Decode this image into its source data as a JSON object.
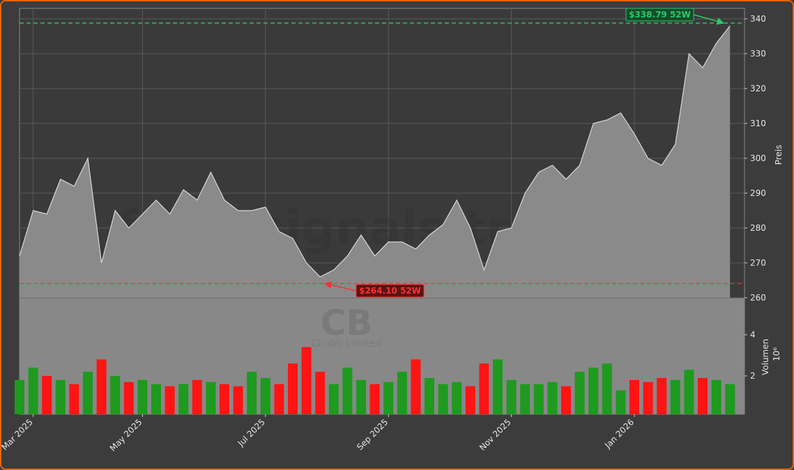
{
  "chart_data": [
    {
      "type": "area",
      "title": null,
      "categories": [
        null,
        "Mar 2025",
        null,
        null,
        null,
        null,
        null,
        null,
        null,
        "May 2025",
        null,
        null,
        null,
        null,
        null,
        null,
        null,
        null,
        "Jul 2025",
        null,
        null,
        null,
        null,
        null,
        null,
        null,
        null,
        "Sep 2025",
        null,
        null,
        null,
        null,
        null,
        null,
        null,
        null,
        "Nov 2025",
        null,
        null,
        null,
        null,
        null,
        null,
        null,
        null,
        "Jan 2026",
        null,
        null,
        null,
        null,
        null,
        null,
        null
      ],
      "values": [
        272,
        285,
        284,
        294,
        292,
        300,
        270,
        285,
        280,
        284,
        288,
        284,
        291,
        288,
        296,
        288,
        285,
        285,
        286,
        279,
        277,
        270,
        266,
        268,
        272,
        278,
        272,
        276,
        276,
        274,
        278,
        281,
        288,
        280,
        268,
        279,
        280,
        290,
        296,
        298,
        294,
        298,
        310,
        311,
        313,
        307,
        300,
        298,
        304,
        330,
        326,
        333,
        338
      ],
      "ylim": [
        260,
        343
      ],
      "yticks": [
        260,
        270,
        280,
        290,
        300,
        310,
        320,
        330,
        340
      ],
      "ylabel": "Preis",
      "grid": true,
      "hlines": [
        {
          "value": 338.79,
          "label": "$338.79 52W",
          "color": "#2ec866"
        },
        {
          "value": 264.1,
          "label": "$264.10 52W",
          "color": "#ff3030"
        }
      ],
      "watermark": "forexsignals.trade"
    },
    {
      "type": "bar",
      "values": [
        1.8,
        2.4,
        2.0,
        1.8,
        1.6,
        2.2,
        2.8,
        2.0,
        1.7,
        1.8,
        1.6,
        1.5,
        1.6,
        1.8,
        1.7,
        1.6,
        1.5,
        2.2,
        1.9,
        1.6,
        2.6,
        3.4,
        2.2,
        1.6,
        2.4,
        1.8,
        1.6,
        1.7,
        2.2,
        2.8,
        1.9,
        1.6,
        1.7,
        1.5,
        2.6,
        2.8,
        1.8,
        1.6,
        1.6,
        1.7,
        1.5,
        2.2,
        2.4,
        2.6,
        1.3,
        1.8,
        1.7,
        1.9,
        1.8,
        2.3,
        1.9,
        1.8,
        1.6
      ],
      "ylim": [
        0.14,
        5.76
      ],
      "yticks": [
        2,
        4
      ],
      "ylabel": "Volumen",
      "offset_label": "10⁶",
      "up_color": "#1e9a1e",
      "down_color": "#ff1414",
      "symbol": "CB",
      "company": "Chubb Limited"
    }
  ]
}
